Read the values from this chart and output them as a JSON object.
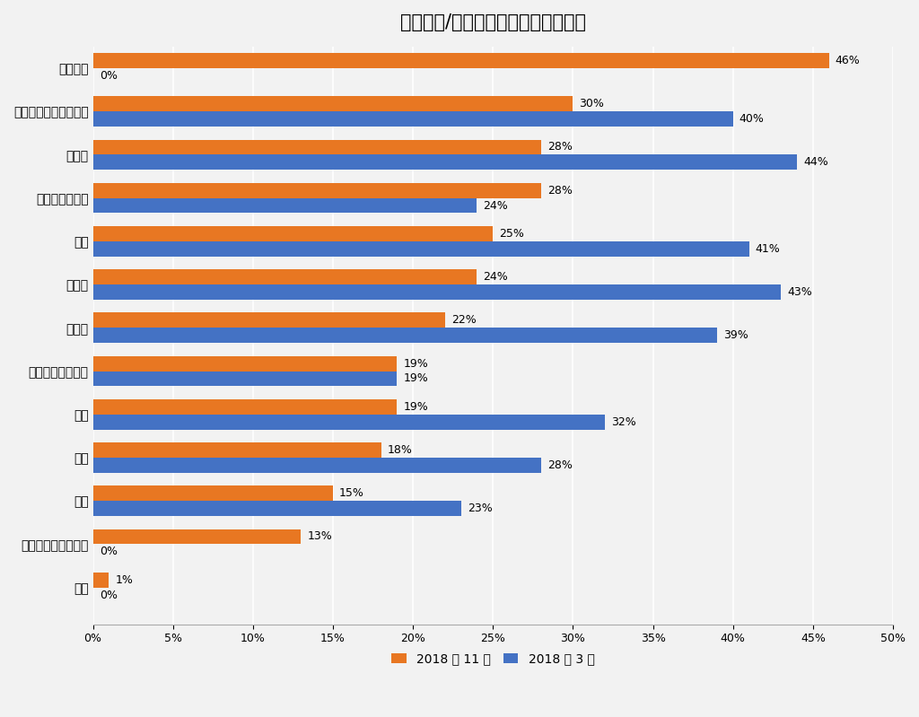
{
  "title": "您在使用/部署容器时面临哪些挑战？",
  "categories": [
    "缺乏培训",
    "难以选择编排解决方案",
    "复杂性",
    "寻找供应商支持",
    "监控",
    "可靠性",
    "安全性",
    "基于负载扩展部署",
    "记录",
    "联网",
    "存储",
    "开发团队的文化变革",
    "其他"
  ],
  "nov2018": [
    46,
    30,
    28,
    28,
    25,
    24,
    22,
    19,
    19,
    18,
    15,
    13,
    1
  ],
  "mar2018": [
    0,
    40,
    44,
    24,
    41,
    43,
    39,
    19,
    32,
    28,
    23,
    0,
    0
  ],
  "color_nov": "#E87722",
  "color_mar": "#4472C4",
  "xlim": [
    0,
    50
  ],
  "xtick_vals": [
    0,
    5,
    10,
    15,
    20,
    25,
    30,
    35,
    40,
    45,
    50
  ],
  "legend_nov": "2018 年 11 月",
  "legend_mar": "2018 年 3 月",
  "background_color": "#F2F2F2",
  "bar_height": 0.35,
  "title_fontsize": 15,
  "label_fontsize": 9,
  "ytick_fontsize": 10,
  "xtick_fontsize": 9
}
